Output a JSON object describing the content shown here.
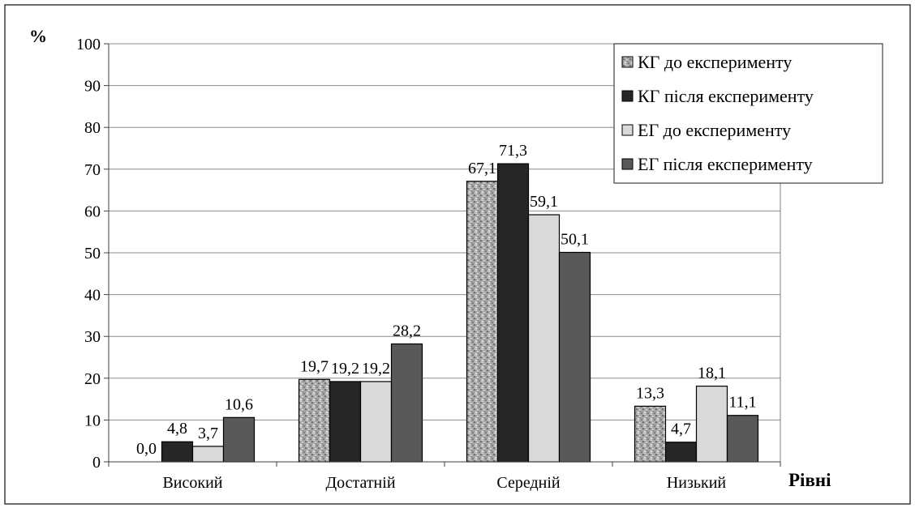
{
  "chart_data": {
    "type": "bar",
    "ylabel": "%",
    "xlabel": "Рівні",
    "ylim": [
      0,
      100
    ],
    "yticks": [
      0,
      10,
      20,
      30,
      40,
      50,
      60,
      70,
      80,
      90,
      100
    ],
    "categories": [
      "Високий",
      "Достатній",
      "Середній",
      "Низький"
    ],
    "series": [
      {
        "name": "КГ до експерименту",
        "values": [
          0.0,
          19.7,
          67.1,
          13.3
        ],
        "labels": [
          "0,0",
          "19,7",
          "67,1",
          "13,3"
        ],
        "fill": "pattern-gray"
      },
      {
        "name": "КГ після експерименту",
        "values": [
          4.8,
          19.2,
          71.3,
          4.7
        ],
        "labels": [
          "4,8",
          "19,2",
          "71,3",
          "4,7"
        ],
        "fill": "#262626"
      },
      {
        "name": "ЕГ до експерименту",
        "values": [
          3.7,
          19.2,
          59.1,
          18.1
        ],
        "labels": [
          "3,7",
          "19,2",
          "59,1",
          "18,1"
        ],
        "fill": "#d9d9d9"
      },
      {
        "name": "ЕГ після експерименту",
        "values": [
          10.6,
          28.2,
          50.1,
          11.1
        ],
        "labels": [
          "10,6",
          "28,2",
          "50,1",
          "11,1"
        ],
        "fill": "#595959"
      }
    ],
    "grid": true,
    "legend_position": "top-right"
  }
}
